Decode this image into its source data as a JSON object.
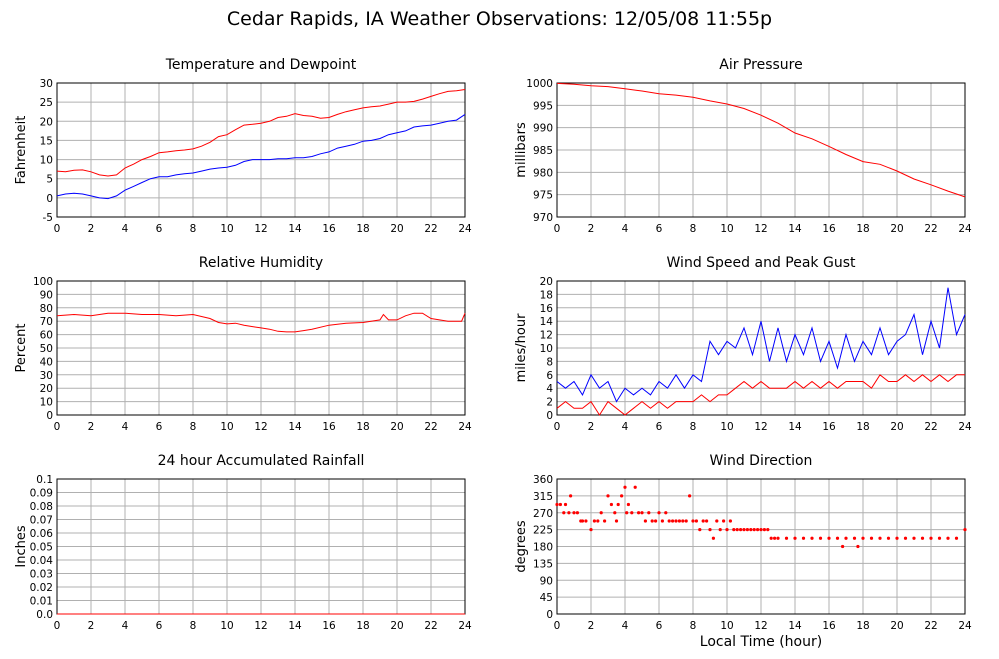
{
  "title": "Cedar Rapids, IA Weather Observations: 12/05/08 11:55p",
  "x_axis_label": "Local Time (hour)",
  "colors": {
    "primary": "#ff0000",
    "secondary": "#0000ff",
    "grid": "#b0b0b0"
  },
  "chart_data": [
    {
      "id": "temperature",
      "type": "line",
      "title": "Temperature and Dewpoint",
      "ylabel": "Fahrenheit",
      "xlim": [
        0,
        24
      ],
      "ylim": [
        -5,
        30
      ],
      "x_ticks": [
        0,
        2,
        4,
        6,
        8,
        10,
        12,
        14,
        16,
        18,
        20,
        22,
        24
      ],
      "y_ticks": [
        -5,
        0,
        5,
        10,
        15,
        20,
        25,
        30
      ],
      "grid": true,
      "series": [
        {
          "color": "#ff0000",
          "x": [
            0,
            0.5,
            1,
            1.5,
            2,
            2.5,
            3,
            3.5,
            4,
            4.5,
            5,
            5.5,
            6,
            6.5,
            7,
            7.5,
            8,
            8.5,
            9,
            9.5,
            10,
            10.5,
            11,
            11.5,
            12,
            12.5,
            13,
            13.5,
            14,
            14.5,
            15,
            15.5,
            16,
            16.5,
            17,
            17.5,
            18,
            18.5,
            19,
            19.5,
            20,
            20.5,
            21,
            21.5,
            22,
            22.5,
            23,
            23.5,
            24
          ],
          "y": [
            7,
            6.8,
            7.2,
            7.3,
            6.8,
            6,
            5.7,
            6,
            7.8,
            8.8,
            10,
            10.8,
            11.8,
            12,
            12.3,
            12.5,
            12.8,
            13.5,
            14.5,
            16,
            16.5,
            17.8,
            19,
            19.2,
            19.5,
            20,
            21,
            21.3,
            22,
            21.5,
            21.3,
            20.8,
            21,
            21.8,
            22.5,
            23,
            23.5,
            23.8,
            24,
            24.5,
            25,
            25,
            25.2,
            25.8,
            26.5,
            27.2,
            27.8,
            28,
            28.3
          ]
        },
        {
          "color": "#0000ff",
          "x": [
            0,
            0.5,
            1,
            1.5,
            2,
            2.5,
            3,
            3.5,
            4,
            4.5,
            5,
            5.5,
            6,
            6.5,
            7,
            7.5,
            8,
            8.5,
            9,
            9.5,
            10,
            10.5,
            11,
            11.5,
            12,
            12.5,
            13,
            13.5,
            14,
            14.5,
            15,
            15.5,
            16,
            16.5,
            17,
            17.5,
            18,
            18.5,
            19,
            19.5,
            20,
            20.5,
            21,
            21.5,
            22,
            22.5,
            23,
            23.5,
            24
          ],
          "y": [
            0.5,
            1,
            1.2,
            1,
            0.5,
            0,
            -0.2,
            0.5,
            2,
            3,
            4,
            5,
            5.5,
            5.5,
            6,
            6.3,
            6.5,
            7,
            7.5,
            7.8,
            8,
            8.5,
            9.5,
            10,
            10,
            10,
            10.2,
            10.2,
            10.5,
            10.5,
            10.8,
            11.5,
            12,
            13,
            13.5,
            14,
            14.8,
            15,
            15.5,
            16.5,
            17,
            17.5,
            18.5,
            18.8,
            19,
            19.5,
            20,
            20.3,
            21.8
          ]
        }
      ]
    },
    {
      "id": "pressure",
      "type": "line",
      "title": "Air Pressure",
      "ylabel": "millibars",
      "xlim": [
        0,
        24
      ],
      "ylim": [
        970,
        1000
      ],
      "x_ticks": [
        0,
        2,
        4,
        6,
        8,
        10,
        12,
        14,
        16,
        18,
        20,
        22,
        24
      ],
      "y_ticks": [
        970,
        975,
        980,
        985,
        990,
        995,
        1000
      ],
      "grid": true,
      "series": [
        {
          "color": "#ff0000",
          "x": [
            0,
            1,
            2,
            3,
            4,
            5,
            6,
            7,
            8,
            9,
            10,
            11,
            12,
            13,
            14,
            15,
            16,
            17,
            18,
            19,
            20,
            21,
            22,
            23,
            24
          ],
          "y": [
            999.9,
            999.7,
            999.4,
            999.2,
            998.7,
            998.2,
            997.6,
            997.3,
            996.8,
            996,
            995.3,
            994.3,
            992.8,
            991,
            988.8,
            987.5,
            985.8,
            984,
            982.4,
            981.8,
            980.3,
            978.5,
            977.2,
            975.8,
            974.5
          ]
        }
      ]
    },
    {
      "id": "humidity",
      "type": "line",
      "title": "Relative Humidity",
      "ylabel": "Percent",
      "xlim": [
        0,
        24
      ],
      "ylim": [
        0,
        100
      ],
      "x_ticks": [
        0,
        2,
        4,
        6,
        8,
        10,
        12,
        14,
        16,
        18,
        20,
        22,
        24
      ],
      "y_ticks": [
        0,
        10,
        20,
        30,
        40,
        50,
        60,
        70,
        80,
        90,
        100
      ],
      "grid": true,
      "series": [
        {
          "color": "#ff0000",
          "x": [
            0,
            1,
            2,
            3,
            4,
            5,
            6,
            7,
            8,
            9,
            9.5,
            10,
            10.5,
            11,
            11.5,
            12,
            12.5,
            13,
            13.5,
            14,
            14.5,
            15,
            16,
            17,
            18,
            19,
            19.2,
            19.5,
            20,
            20.5,
            21,
            21.5,
            22,
            23,
            23.8,
            24
          ],
          "y": [
            74,
            75,
            74,
            76,
            76,
            75,
            75,
            74,
            75,
            72,
            69,
            68,
            68.5,
            67,
            66,
            65,
            64,
            62.5,
            62,
            62,
            63,
            64,
            67,
            68.5,
            69,
            71,
            75,
            71,
            71,
            74,
            76,
            76,
            72,
            70,
            70,
            76
          ]
        }
      ]
    },
    {
      "id": "wind",
      "type": "line",
      "title": "Wind Speed and Peak Gust",
      "ylabel": "miles/hour",
      "xlim": [
        0,
        24
      ],
      "ylim": [
        0,
        20
      ],
      "x_ticks": [
        0,
        2,
        4,
        6,
        8,
        10,
        12,
        14,
        16,
        18,
        20,
        22,
        24
      ],
      "y_ticks": [
        0,
        2,
        4,
        6,
        8,
        10,
        12,
        14,
        16,
        18,
        20
      ],
      "grid": true,
      "series": [
        {
          "color": "#0000ff",
          "x": [
            0,
            0.5,
            1,
            1.5,
            2,
            2.5,
            3,
            3.5,
            4,
            4.5,
            5,
            5.5,
            6,
            6.5,
            7,
            7.5,
            8,
            8.5,
            9,
            9.5,
            10,
            10.5,
            11,
            11.5,
            12,
            12.5,
            13,
            13.5,
            14,
            14.5,
            15,
            15.5,
            16,
            16.5,
            17,
            17.5,
            18,
            18.5,
            19,
            19.5,
            20,
            20.5,
            21,
            21.5,
            22,
            22.5,
            23,
            23.5,
            24
          ],
          "y": [
            5,
            4,
            5,
            3,
            6,
            4,
            5,
            2,
            4,
            3,
            4,
            3,
            5,
            4,
            6,
            4,
            6,
            5,
            11,
            9,
            11,
            10,
            13,
            9,
            14,
            8,
            13,
            8,
            12,
            9,
            13,
            8,
            11,
            7,
            12,
            8,
            11,
            9,
            13,
            9,
            11,
            12,
            15,
            9,
            14,
            10,
            19,
            12,
            15
          ]
        },
        {
          "color": "#ff0000",
          "x": [
            0,
            0.5,
            1,
            1.5,
            2,
            2.5,
            3,
            3.5,
            4,
            4.5,
            5,
            5.5,
            6,
            6.5,
            7,
            7.5,
            8,
            8.5,
            9,
            9.5,
            10,
            10.5,
            11,
            11.5,
            12,
            12.5,
            13,
            13.5,
            14,
            14.5,
            15,
            15.5,
            16,
            16.5,
            17,
            17.5,
            18,
            18.5,
            19,
            19.5,
            20,
            20.5,
            21,
            21.5,
            22,
            22.5,
            23,
            23.5,
            24
          ],
          "y": [
            1,
            2,
            1,
            1,
            2,
            0,
            2,
            1,
            0,
            1,
            2,
            1,
            2,
            1,
            2,
            2,
            2,
            3,
            2,
            3,
            3,
            4,
            5,
            4,
            5,
            4,
            4,
            4,
            5,
            4,
            5,
            4,
            5,
            4,
            5,
            5,
            5,
            4,
            6,
            5,
            5,
            6,
            5,
            6,
            5,
            6,
            5,
            6,
            6
          ]
        }
      ]
    },
    {
      "id": "rainfall",
      "type": "line",
      "title": "24 hour Accumulated Rainfall",
      "ylabel": "Inches",
      "xlim": [
        0,
        24
      ],
      "ylim": [
        0,
        0.1
      ],
      "x_ticks": [
        0,
        2,
        4,
        6,
        8,
        10,
        12,
        14,
        16,
        18,
        20,
        22,
        24
      ],
      "y_ticks": [
        "0.0",
        "0.01",
        "0.02",
        "0.03",
        "0.04",
        "0.05",
        "0.06",
        "0.07",
        "0.08",
        "0.09",
        "0.1"
      ],
      "grid": true,
      "series": [
        {
          "color": "#ff0000",
          "x": [
            0,
            24
          ],
          "y": [
            0,
            0
          ]
        }
      ]
    },
    {
      "id": "direction",
      "type": "scatter",
      "title": "Wind Direction",
      "ylabel": "degrees",
      "xlim": [
        0,
        24
      ],
      "ylim": [
        0,
        360
      ],
      "x_ticks": [
        0,
        2,
        4,
        6,
        8,
        10,
        12,
        14,
        16,
        18,
        20,
        22,
        24
      ],
      "y_ticks": [
        0,
        45,
        90,
        135,
        180,
        225,
        270,
        315,
        360
      ],
      "grid": true,
      "series": [
        {
          "color": "#ff0000",
          "x": [
            0,
            0.2,
            0.4,
            0.5,
            0.7,
            0.8,
            1,
            1.2,
            1.4,
            1.5,
            1.7,
            2,
            2.2,
            2.4,
            2.6,
            2.8,
            3,
            3.2,
            3.4,
            3.5,
            3.6,
            3.8,
            4,
            4.1,
            4.2,
            4.4,
            4.6,
            4.8,
            5,
            5.2,
            5.4,
            5.6,
            5.8,
            6,
            6.2,
            6.4,
            6.6,
            6.8,
            7,
            7.2,
            7.4,
            7.6,
            7.8,
            8,
            8.2,
            8.4,
            8.6,
            8.8,
            9,
            9.2,
            9.4,
            9.6,
            9.8,
            10,
            10.2,
            10.4,
            10.6,
            10.8,
            11,
            11.2,
            11.4,
            11.6,
            11.8,
            12,
            12.2,
            12.4,
            12.6,
            12.8,
            13,
            13.5,
            14,
            14.5,
            15,
            15.5,
            16,
            16.5,
            16.8,
            17,
            17.5,
            17.7,
            18,
            18.5,
            19,
            19.5,
            20,
            20.5,
            21,
            21.5,
            22,
            22.5,
            23,
            23.5,
            24
          ],
          "y": [
            292,
            292,
            270,
            292,
            270,
            315,
            270,
            270,
            248,
            248,
            248,
            225,
            248,
            248,
            270,
            248,
            315,
            292,
            270,
            248,
            292,
            315,
            338,
            270,
            292,
            270,
            338,
            270,
            270,
            248,
            270,
            248,
            248,
            270,
            248,
            270,
            248,
            248,
            248,
            248,
            248,
            248,
            315,
            248,
            248,
            225,
            248,
            248,
            225,
            202,
            248,
            225,
            248,
            225,
            248,
            225,
            225,
            225,
            225,
            225,
            225,
            225,
            225,
            225,
            225,
            225,
            202,
            202,
            202,
            202,
            202,
            202,
            202,
            202,
            202,
            202,
            180,
            202,
            202,
            180,
            202,
            202,
            202,
            202,
            202,
            202,
            202,
            202,
            202,
            202,
            202,
            202,
            225
          ]
        }
      ]
    }
  ]
}
